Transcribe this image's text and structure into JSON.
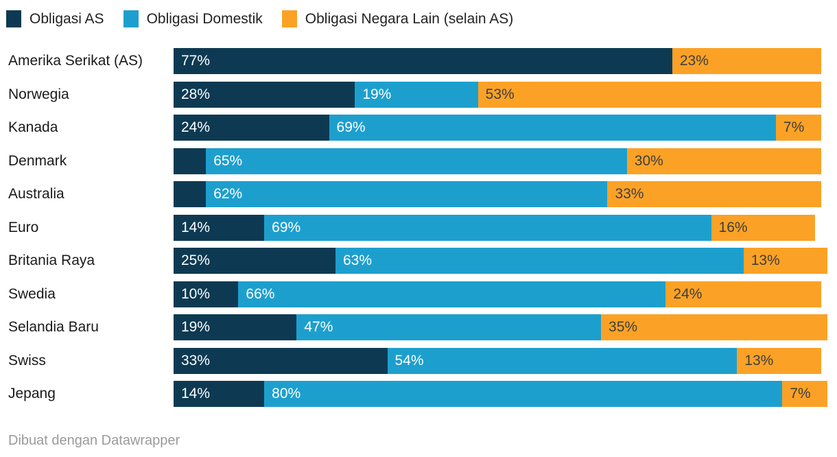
{
  "colors": {
    "us": "#0d3a52",
    "domestic": "#1d9fce",
    "other": "#fba226",
    "label_on_dark": "#ffffff",
    "label_on_orange": "#3d3d3d",
    "country_label": "#1a1a1a",
    "credit_text": "#9a9a9a"
  },
  "footer": {
    "credit": "Dibuat dengan Datawrapper"
  },
  "chart_data": {
    "type": "bar",
    "stacked": true,
    "orientation": "horizontal",
    "unit": "%",
    "axis_range": [
      0,
      100
    ],
    "grid": false,
    "legend_position": "top",
    "categories": [
      "Amerika Serikat (AS)",
      "Norwegia",
      "Kanada",
      "Denmark",
      "Australia",
      "Euro",
      "Britania Raya",
      "Swedia",
      "Selandia Baru",
      "Swiss",
      "Jepang"
    ],
    "series": [
      {
        "key": "us",
        "name": "Obligasi AS",
        "color": "#0d3a52",
        "values": [
          77,
          28,
          24,
          5,
          5,
          14,
          25,
          10,
          19,
          33,
          14
        ],
        "labels": [
          "77%",
          "28%",
          "24%",
          "",
          "",
          "14%",
          "25%",
          "10%",
          "19%",
          "33%",
          "14%"
        ]
      },
      {
        "key": "domestic",
        "name": "Obligasi Domestik",
        "color": "#1d9fce",
        "values": [
          0,
          19,
          69,
          65,
          62,
          69,
          63,
          66,
          47,
          54,
          80
        ],
        "labels": [
          "",
          "19%",
          "69%",
          "65%",
          "62%",
          "69%",
          "63%",
          "66%",
          "47%",
          "54%",
          "80%"
        ]
      },
      {
        "key": "other",
        "name": "Obligasi Negara Lain (selain AS)",
        "color": "#fba226",
        "values": [
          23,
          53,
          7,
          30,
          33,
          16,
          13,
          24,
          35,
          13,
          7
        ],
        "labels": [
          "23%",
          "53%",
          "7%",
          "30%",
          "33%",
          "16%",
          "13%",
          "24%",
          "35%",
          "13%",
          "7%"
        ]
      }
    ]
  }
}
